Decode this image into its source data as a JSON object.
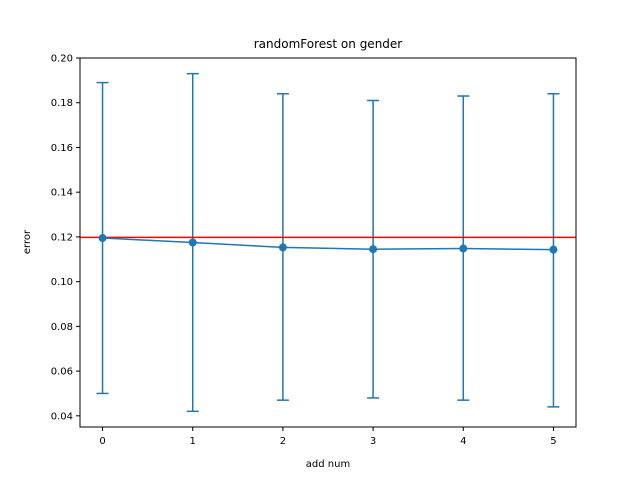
{
  "chart_data": {
    "type": "line",
    "title": "randomForest on gender",
    "xlabel": "add num",
    "ylabel": "error",
    "xlim": [
      -0.25,
      5.25
    ],
    "ylim": [
      0.035,
      0.2
    ],
    "xticks": [
      0,
      1,
      2,
      3,
      4,
      5
    ],
    "yticks": [
      0.04,
      0.06,
      0.08,
      0.1,
      0.12,
      0.14,
      0.16,
      0.18,
      0.2
    ],
    "ytick_labels": [
      "0.04",
      "0.06",
      "0.08",
      "0.10",
      "0.12",
      "0.14",
      "0.16",
      "0.18",
      "0.20"
    ],
    "grid": false,
    "series": [
      {
        "x": [
          0,
          1,
          2,
          3,
          4,
          5
        ],
        "values": [
          0.1195,
          0.1175,
          0.1153,
          0.1145,
          0.1148,
          0.1143
        ],
        "err_upper": [
          0.189,
          0.193,
          0.184,
          0.181,
          0.183,
          0.184
        ],
        "err_lower": [
          0.05,
          0.042,
          0.047,
          0.048,
          0.047,
          0.044
        ],
        "color": "#1f77b4"
      }
    ],
    "hlines": [
      {
        "y": 0.1198,
        "color": "#ff0000"
      }
    ]
  }
}
